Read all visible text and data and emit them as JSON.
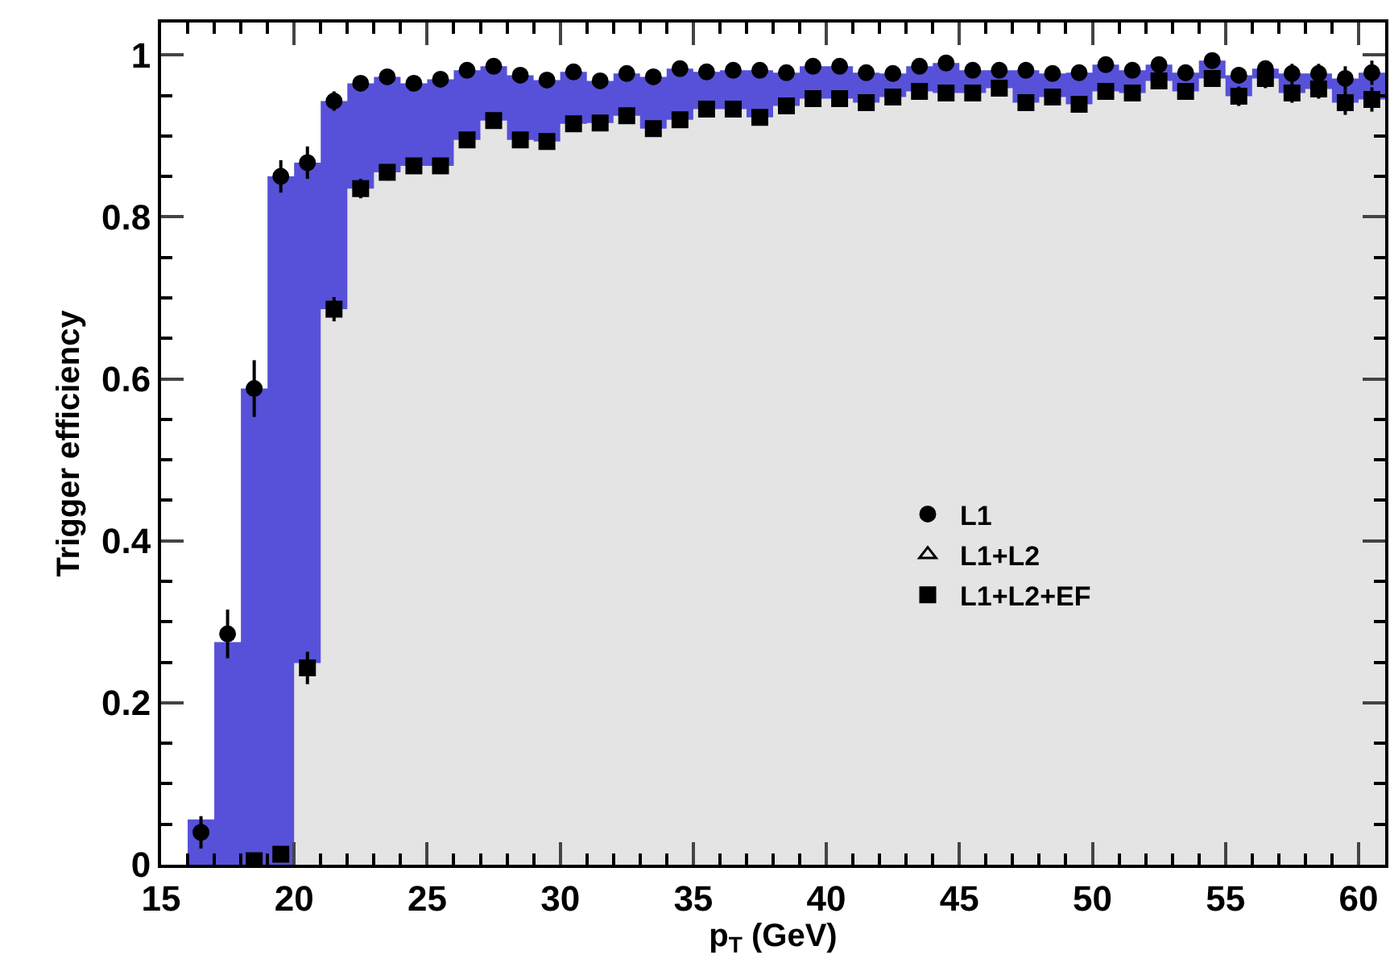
{
  "chart_data": {
    "type": "scatter",
    "xlabel": "p$_{T}$ (GeV)",
    "ylabel": "Trigger efficiency",
    "xlim": [
      15,
      61
    ],
    "xticks": [
      15,
      20,
      25,
      30,
      35,
      40,
      45,
      50,
      55,
      60
    ],
    "ylim": [
      0,
      1.04
    ],
    "yticks": [
      0,
      0.2,
      0.4,
      0.6,
      0.8,
      1
    ],
    "grid": false,
    "legend": "right",
    "x": [
      16.5,
      17.5,
      18.5,
      19.5,
      20.5,
      21.5,
      22.5,
      23.5,
      24.5,
      25.5,
      26.5,
      27.5,
      28.5,
      29.5,
      30.5,
      31.5,
      32.5,
      33.5,
      34.5,
      35.5,
      36.5,
      37.5,
      38.5,
      39.5,
      40.5,
      41.5,
      42.5,
      43.5,
      44.5,
      45.5,
      46.5,
      47.5,
      48.5,
      49.5,
      50.5,
      51.5,
      52.5,
      53.5,
      54.5,
      55.5,
      56.5,
      57.5,
      58.5,
      59.5,
      60.5
    ],
    "bins": [
      16,
      17,
      18,
      19,
      20,
      21,
      22,
      23,
      24,
      25,
      26,
      27,
      28,
      29,
      30,
      31,
      32,
      33,
      34,
      35,
      36,
      37,
      38,
      39,
      40,
      41,
      42,
      43,
      44,
      45,
      46,
      47,
      48,
      49,
      50,
      51,
      52,
      53,
      54,
      55,
      56,
      57,
      58,
      59,
      60,
      61
    ],
    "series": [
      {
        "type": "histogram",
        "color": "#5651d8",
        "values": [
          0.056,
          0.275,
          0.588,
          0.85,
          0.867,
          0.943,
          0.965,
          0.973,
          0.965,
          0.97,
          0.981,
          0.986,
          0.975,
          0.969,
          0.979,
          0.968,
          0.977,
          0.973,
          0.983,
          0.979,
          0.981,
          0.981,
          0.978,
          0.986,
          0.986,
          0.978,
          0.977,
          0.986,
          0.99,
          0.981,
          0.981,
          0.981,
          0.977,
          0.978,
          0.988,
          0.981,
          0.988,
          0.978,
          0.993,
          0.975,
          0.983,
          0.977,
          0.977,
          0.971,
          0.978
        ]
      },
      {
        "type": "histogram",
        "color": "#e4e4e4",
        "values": [
          0,
          0,
          0,
          0,
          0.249,
          0.686,
          0.835,
          0.855,
          0.863,
          0.863,
          0.895,
          0.919,
          0.895,
          0.893,
          0.915,
          0.916,
          0.925,
          0.909,
          0.92,
          0.933,
          0.933,
          0.923,
          0.937,
          0.946,
          0.946,
          0.941,
          0.948,
          0.955,
          0.953,
          0.953,
          0.959,
          0.941,
          0.948,
          0.939,
          0.955,
          0.953,
          0.968,
          0.955,
          0.971,
          0.949,
          0.971,
          0.953,
          0.958,
          0.941,
          0.945
        ]
      },
      {
        "name": "L1",
        "marker": "circle",
        "color": "#000000",
        "values": [
          0.04,
          0.285,
          0.588,
          0.85,
          0.867,
          0.943,
          0.965,
          0.973,
          0.965,
          0.97,
          0.981,
          0.986,
          0.975,
          0.969,
          0.979,
          0.968,
          0.977,
          0.973,
          0.983,
          0.979,
          0.981,
          0.981,
          0.978,
          0.986,
          0.986,
          0.978,
          0.977,
          0.986,
          0.99,
          0.981,
          0.981,
          0.981,
          0.977,
          0.978,
          0.988,
          0.981,
          0.988,
          0.978,
          0.993,
          0.975,
          0.983,
          0.977,
          0.977,
          0.971,
          0.978
        ],
        "errors": [
          0.02,
          0.03,
          0.035,
          0.02,
          0.02,
          0.012,
          0.008,
          0.008,
          0.008,
          0.008,
          0.006,
          0.006,
          0.006,
          0.006,
          0.006,
          0.006,
          0.006,
          0.006,
          0.006,
          0.006,
          0.006,
          0.006,
          0.006,
          0.006,
          0.006,
          0.006,
          0.006,
          0.006,
          0.006,
          0.006,
          0.006,
          0.006,
          0.008,
          0.008,
          0.008,
          0.008,
          0.008,
          0.01,
          0.01,
          0.01,
          0.01,
          0.012,
          0.012,
          0.015,
          0.015
        ]
      },
      {
        "name": "L1+L2",
        "marker": "triangle",
        "color": "#000000",
        "values": [
          null,
          null,
          null,
          null,
          null,
          null,
          null,
          null,
          null,
          null,
          null,
          null,
          null,
          null,
          null,
          null,
          null,
          null,
          null,
          null,
          null,
          null,
          null,
          null,
          null,
          null,
          null,
          null,
          null,
          null,
          null,
          null,
          null,
          null,
          null,
          null,
          null,
          null,
          null,
          null,
          null,
          null,
          null,
          null,
          null
        ]
      },
      {
        "name": "L1+L2+EF",
        "marker": "square",
        "color": "#000000",
        "x": [
          18.5,
          19.5,
          20.5,
          21.5,
          22.5,
          23.5,
          24.5,
          25.5,
          26.5,
          27.5,
          28.5,
          29.5,
          30.5,
          31.5,
          32.5,
          33.5,
          34.5,
          35.5,
          36.5,
          37.5,
          38.5,
          39.5,
          40.5,
          41.5,
          42.5,
          43.5,
          44.5,
          45.5,
          46.5,
          47.5,
          48.5,
          49.5,
          50.5,
          51.5,
          52.5,
          53.5,
          54.5,
          55.5,
          56.5,
          57.5,
          58.5,
          59.5,
          60.5
        ],
        "values": [
          0.005,
          0.013,
          0.243,
          0.686,
          0.835,
          0.855,
          0.863,
          0.863,
          0.895,
          0.919,
          0.895,
          0.893,
          0.915,
          0.916,
          0.925,
          0.909,
          0.92,
          0.933,
          0.933,
          0.923,
          0.937,
          0.946,
          0.946,
          0.941,
          0.948,
          0.955,
          0.953,
          0.953,
          0.959,
          0.941,
          0.948,
          0.939,
          0.955,
          0.953,
          0.968,
          0.955,
          0.971,
          0.949,
          0.971,
          0.953,
          0.958,
          0.941,
          0.945
        ],
        "errors": [
          0.005,
          0.006,
          0.02,
          0.015,
          0.012,
          0.01,
          0.01,
          0.01,
          0.008,
          0.008,
          0.008,
          0.008,
          0.008,
          0.008,
          0.008,
          0.008,
          0.008,
          0.008,
          0.008,
          0.008,
          0.008,
          0.008,
          0.008,
          0.008,
          0.008,
          0.008,
          0.008,
          0.008,
          0.008,
          0.008,
          0.008,
          0.008,
          0.01,
          0.01,
          0.01,
          0.01,
          0.01,
          0.012,
          0.012,
          0.012,
          0.012,
          0.015,
          0.015
        ]
      }
    ]
  }
}
